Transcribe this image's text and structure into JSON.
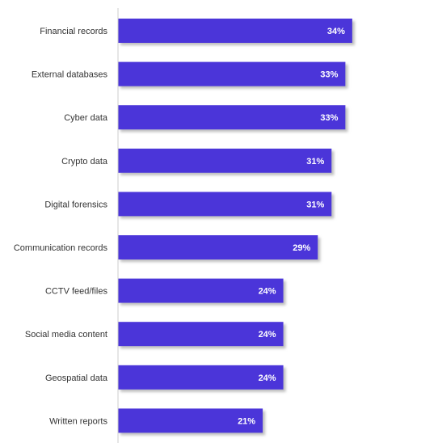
{
  "chart_data": {
    "type": "bar",
    "orientation": "horizontal",
    "title": "",
    "xlabel": "",
    "ylabel": "",
    "categories": [
      "Financial records",
      "External databases",
      "Cyber data",
      "Crypto data",
      "Digital forensics",
      "Communication records",
      "CCTV feed/files",
      "Social media content",
      "Geospatial data",
      "Written reports"
    ],
    "values": [
      34,
      33,
      33,
      31,
      31,
      29,
      24,
      24,
      24,
      21
    ],
    "data_labels": [
      "34%",
      "33%",
      "33%",
      "31%",
      "31%",
      "29%",
      "24%",
      "24%",
      "24%",
      "21%"
    ],
    "value_unit": "%",
    "xlim": [
      0,
      38
    ],
    "grid": false,
    "legend": "none",
    "colors": {
      "bar": "#4b35d9",
      "shadow": "#a9a9a9",
      "axis": "#cccccc",
      "category_text": "#333333",
      "value_text": "#ffffff"
    }
  }
}
